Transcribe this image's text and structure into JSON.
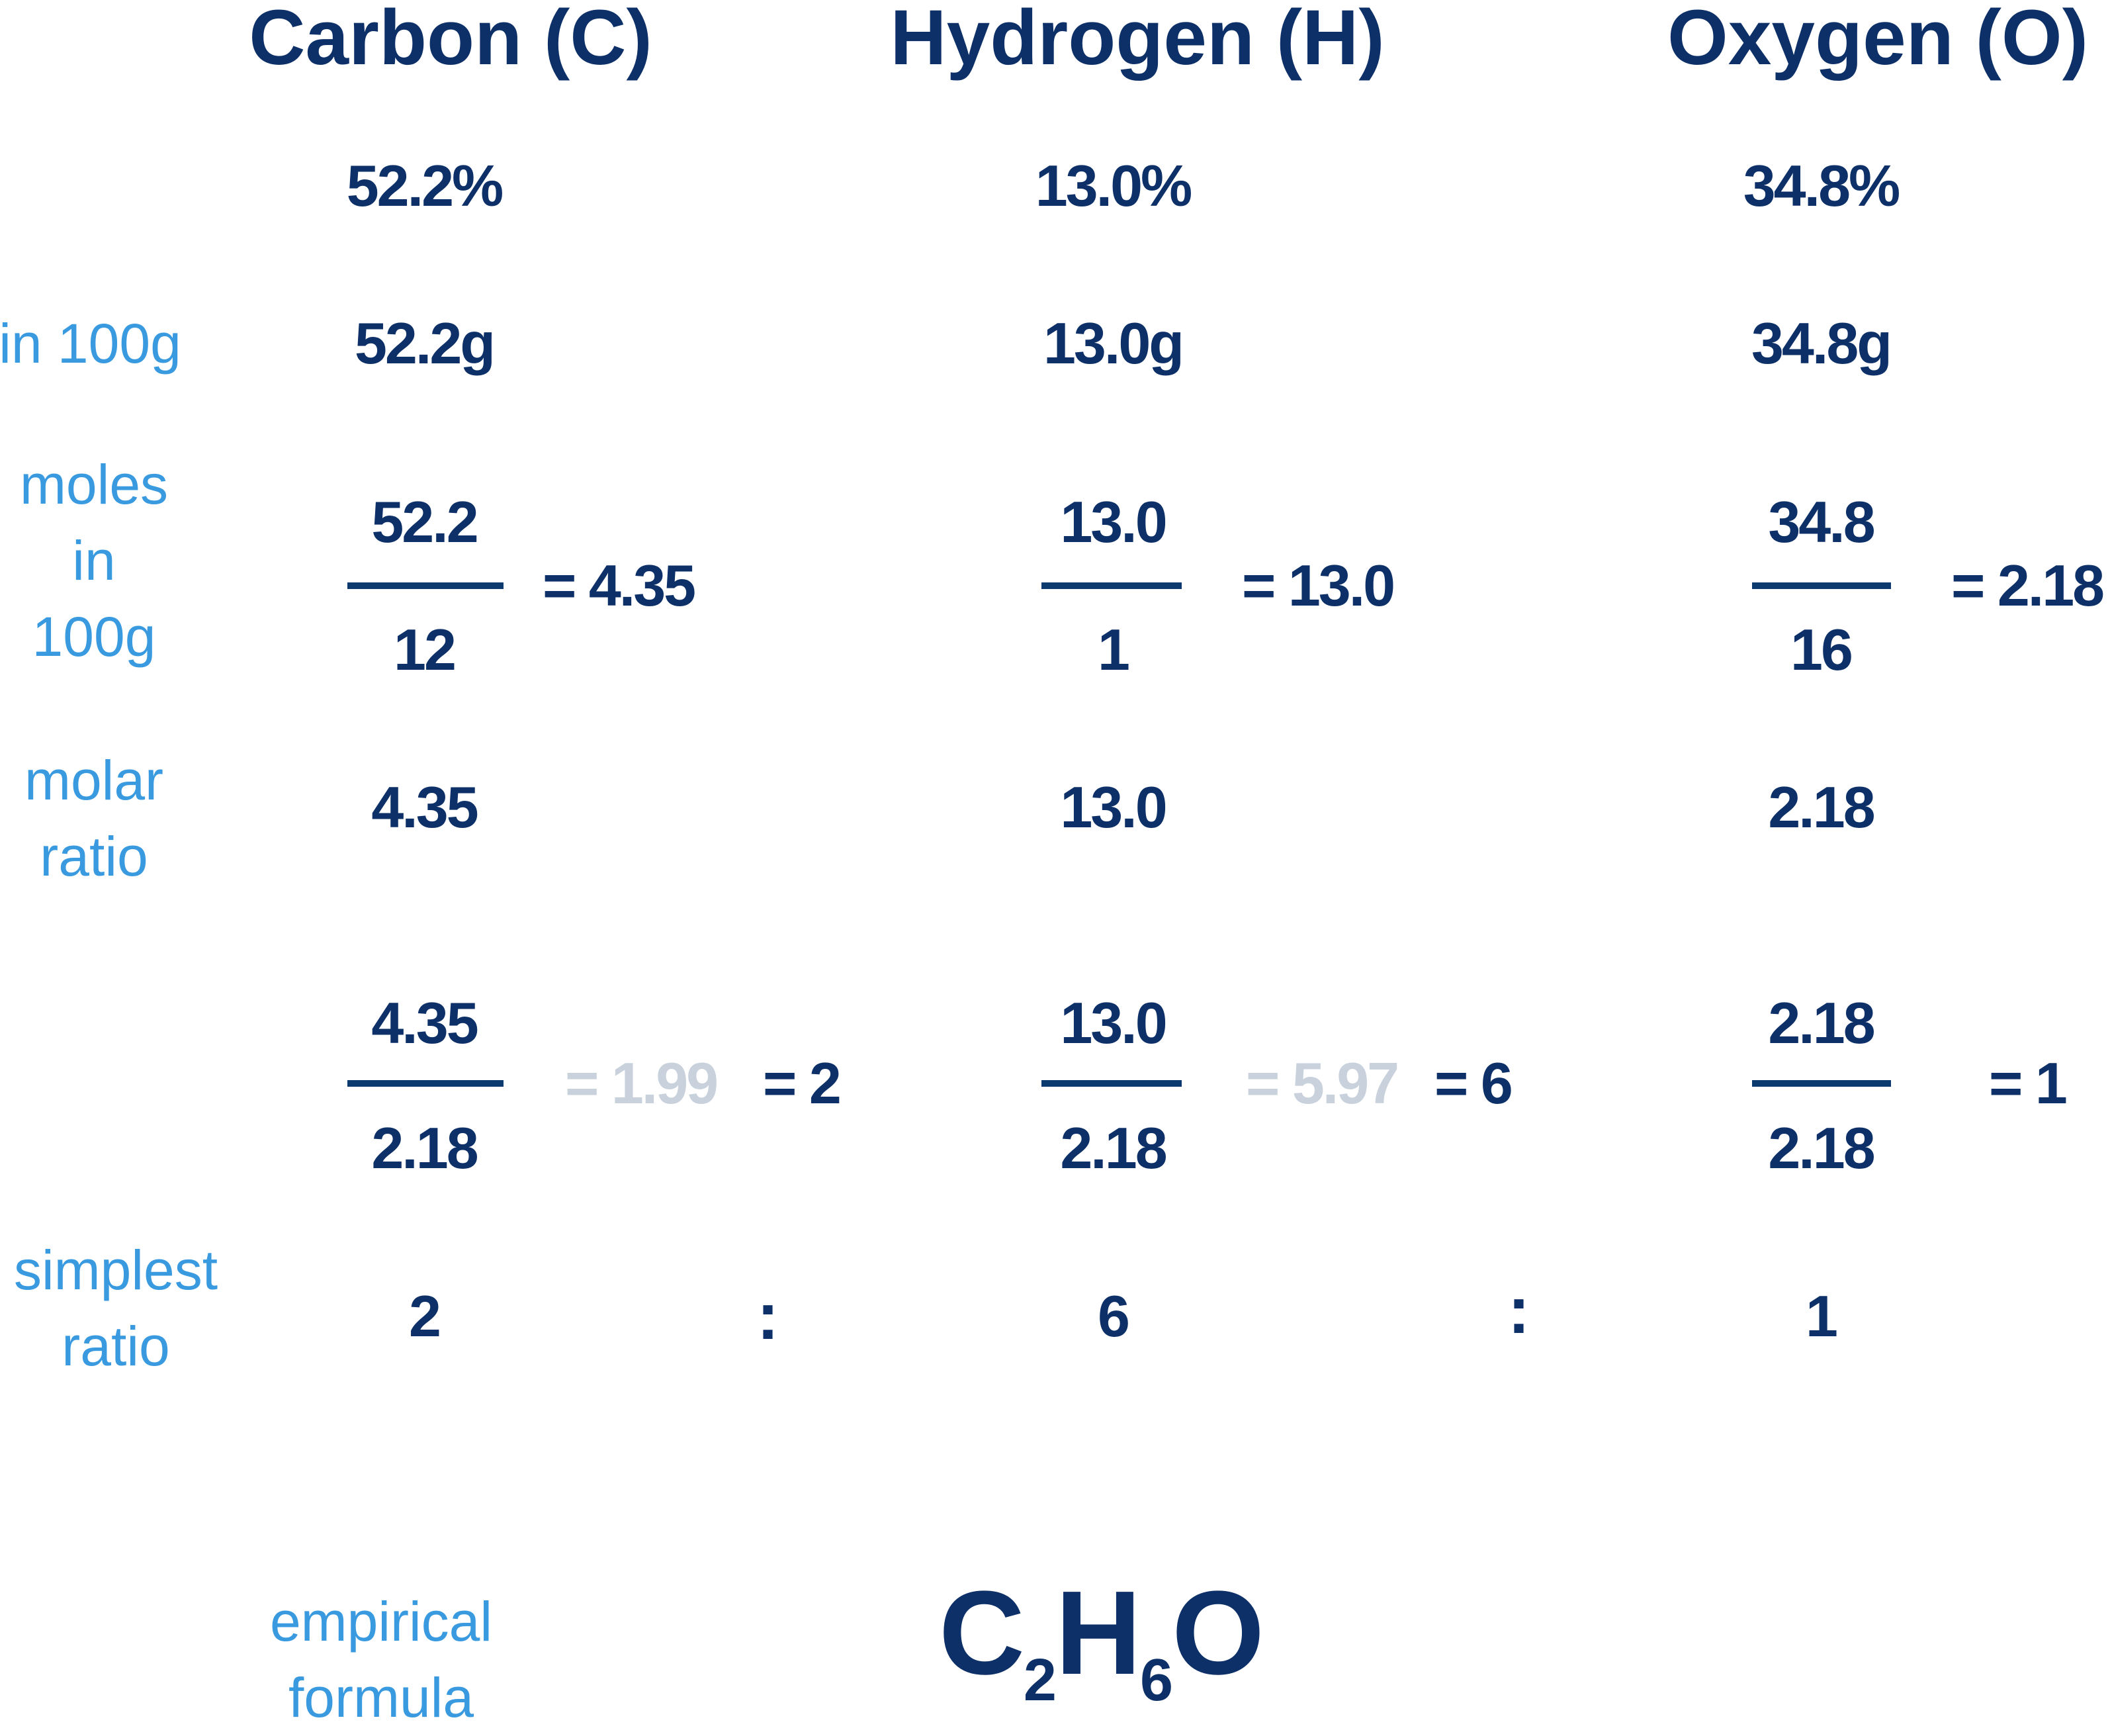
{
  "headers": [
    "Carbon (C)",
    "Hydrogen (H)",
    "Oxygen (O)"
  ],
  "labels": {
    "in100g": "in 100g",
    "moles": [
      "moles",
      "in",
      "100g"
    ],
    "molar_ratio": [
      "molar",
      "ratio"
    ],
    "simplest_ratio": [
      "simplest",
      "ratio"
    ],
    "empirical_formula": [
      "empirical",
      "formula"
    ]
  },
  "columns": [
    {
      "percent": "52.2%",
      "mass": "52.2g",
      "moles_num": "52.2",
      "moles_den": "12",
      "moles_result": "= 4.35",
      "molar_ratio": "4.35",
      "div_num": "4.35",
      "div_den": "2.18",
      "div_raw": "= 1.99",
      "div_result": "= 2",
      "simplest": "2"
    },
    {
      "percent": "13.0%",
      "mass": "13.0g",
      "moles_num": "13.0",
      "moles_den": "1",
      "moles_result": "= 13.0",
      "molar_ratio": "13.0",
      "div_num": "13.0",
      "div_den": "2.18",
      "div_raw": "= 5.97",
      "div_result": "= 6",
      "simplest": "6"
    },
    {
      "percent": "34.8%",
      "mass": "34.8g",
      "moles_num": "34.8",
      "moles_den": "16",
      "moles_result": "= 2.18",
      "molar_ratio": "2.18",
      "div_num": "2.18",
      "div_den": "2.18",
      "div_raw": "",
      "div_result": "= 1",
      "simplest": "1"
    }
  ],
  "ratio_separator": ":",
  "formula": {
    "c": "C",
    "c_sub": "2",
    "h": "H",
    "h_sub": "6",
    "o": "O"
  },
  "colors": {
    "dark": "#0d3068",
    "accent": "#3a9ae0",
    "muted": "#c8d1dc"
  }
}
